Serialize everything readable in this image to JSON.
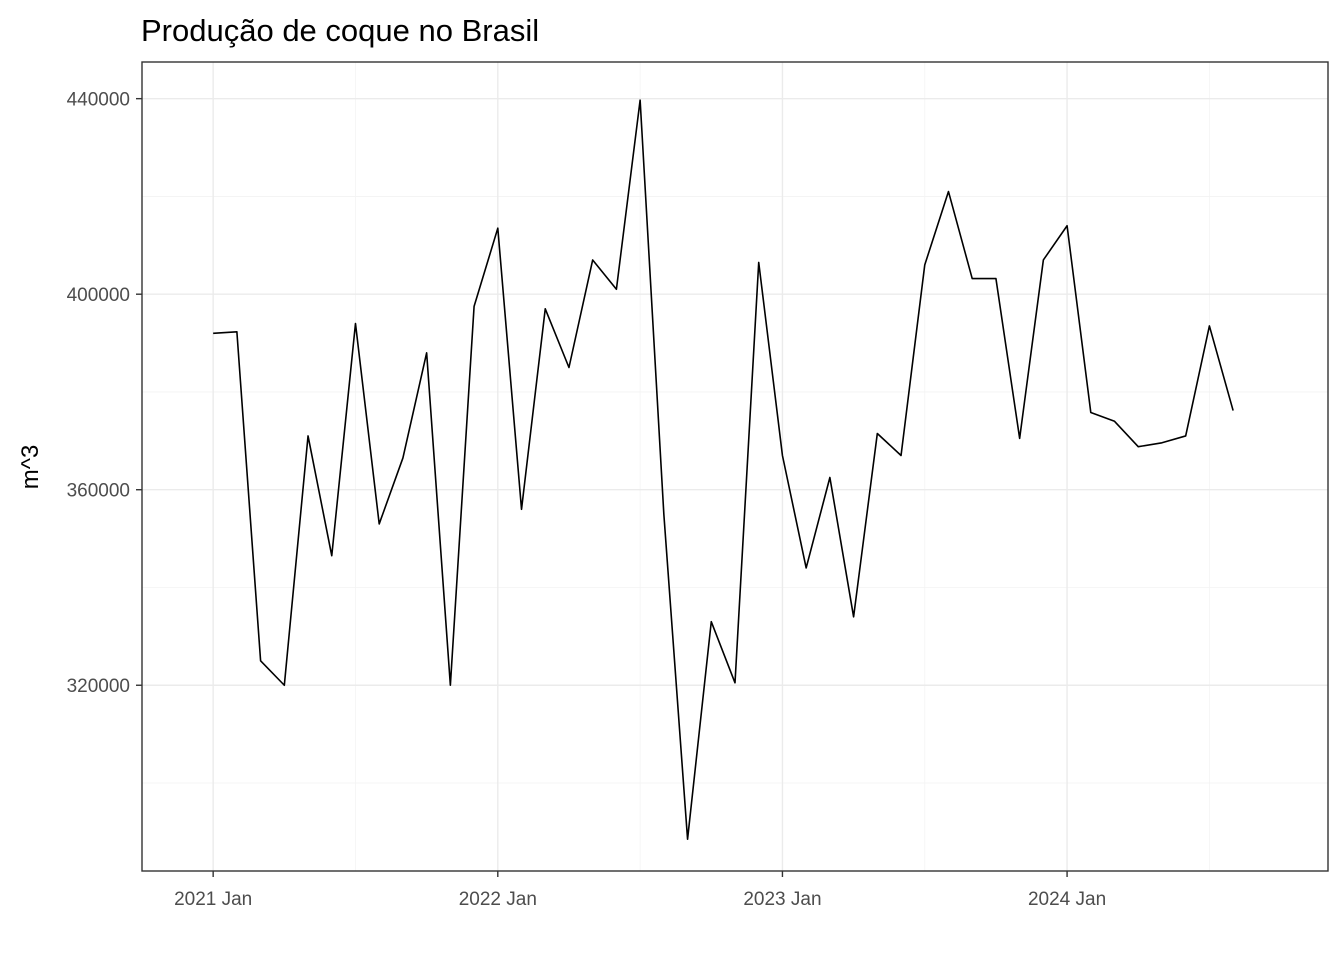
{
  "chart_data": {
    "type": "line",
    "title": "Produção de coque no Brasil",
    "xlabel": "",
    "ylabel": "m^3",
    "ylim": [
      282000,
      447500
    ],
    "y_major_ticks": [
      320000,
      360000,
      400000,
      440000
    ],
    "y_minor_ticks": [
      300000,
      340000,
      380000,
      420000
    ],
    "x_ticks": [
      {
        "label": "2021 Jan",
        "value": "2021-01"
      },
      {
        "label": "2022 Jan",
        "value": "2022-01"
      },
      {
        "label": "2023 Jan",
        "value": "2023-01"
      },
      {
        "label": "2024 Jan",
        "value": "2024-01"
      }
    ],
    "x_minor_ticks": [
      "2021-07",
      "2022-07",
      "2023-07",
      "2024-07"
    ],
    "xlim": [
      "2020-10",
      "2024-12"
    ],
    "grid": true,
    "series": [
      {
        "x": [
          "2021-01",
          "2021-02",
          "2021-03",
          "2021-04",
          "2021-05",
          "2021-06",
          "2021-07",
          "2021-08",
          "2021-09",
          "2021-10",
          "2021-11",
          "2021-12",
          "2022-01",
          "2022-02",
          "2022-03",
          "2022-04",
          "2022-05",
          "2022-06",
          "2022-07",
          "2022-08",
          "2022-09",
          "2022-10",
          "2022-11",
          "2022-12",
          "2023-01",
          "2023-02",
          "2023-03",
          "2023-04",
          "2023-05",
          "2023-06",
          "2023-07",
          "2023-08",
          "2023-09",
          "2023-10",
          "2023-11",
          "2023-12",
          "2024-01",
          "2024-02",
          "2024-03",
          "2024-04",
          "2024-05",
          "2024-06",
          "2024-07",
          "2024-08"
        ],
        "values": [
          392000,
          392300,
          325000,
          320000,
          371000,
          346500,
          394000,
          353000,
          366500,
          388000,
          320000,
          397500,
          413500,
          356000,
          397000,
          385000,
          407000,
          401000,
          439700,
          355000,
          288500,
          333000,
          320500,
          406500,
          367000,
          344000,
          362500,
          334000,
          371500,
          367000,
          406000,
          421000,
          403200,
          403200,
          370500,
          407000,
          414000,
          375800,
          374000,
          368800,
          369600,
          371000,
          393500,
          376200
        ],
        "color": "#000000"
      }
    ]
  }
}
